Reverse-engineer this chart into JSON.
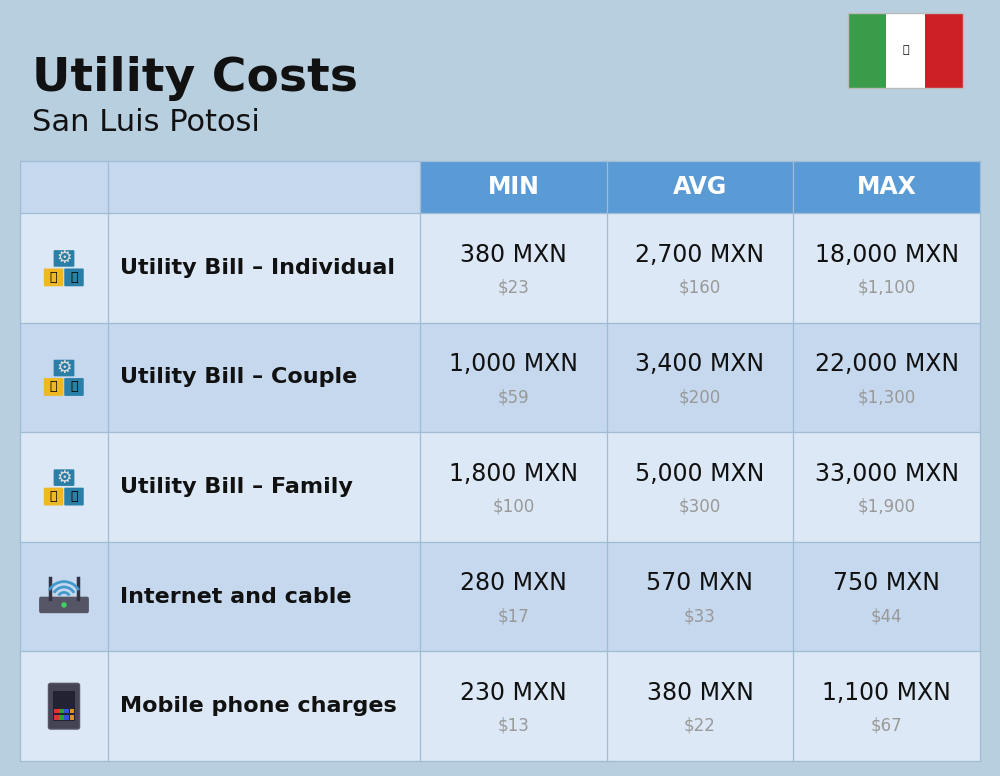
{
  "title": "Utility Costs",
  "subtitle": "San Luis Potosi",
  "background_color": "#b8cfe0",
  "header_bg_color": "#5b9bd5",
  "header_text_color": "#ffffff",
  "row_bg_light": "#dce8f5",
  "row_bg_dark": "#c5d8ed",
  "grid_color": "#a0bcd4",
  "usd_text_color": "#999999",
  "label_text_color": "#111111",
  "columns": [
    "MIN",
    "AVG",
    "MAX"
  ],
  "rows": [
    {
      "label": "Utility Bill – Individual",
      "values_mxn": [
        "380 MXN",
        "2,700 MXN",
        "18,000 MXN"
      ],
      "values_usd": [
        "$23",
        "$160",
        "$1,100"
      ]
    },
    {
      "label": "Utility Bill – Couple",
      "values_mxn": [
        "1,000 MXN",
        "3,400 MXN",
        "22,000 MXN"
      ],
      "values_usd": [
        "$59",
        "$200",
        "$1,300"
      ]
    },
    {
      "label": "Utility Bill – Family",
      "values_mxn": [
        "1,800 MXN",
        "5,000 MXN",
        "33,000 MXN"
      ],
      "values_usd": [
        "$100",
        "$300",
        "$1,900"
      ]
    },
    {
      "label": "Internet and cable",
      "values_mxn": [
        "280 MXN",
        "570 MXN",
        "750 MXN"
      ],
      "values_usd": [
        "$17",
        "$33",
        "$44"
      ]
    },
    {
      "label": "Mobile phone charges",
      "values_mxn": [
        "230 MXN",
        "380 MXN",
        "1,100 MXN"
      ],
      "values_usd": [
        "$13",
        "$22",
        "$67"
      ]
    }
  ],
  "flag_green": "#3a9c4a",
  "flag_white": "#ffffff",
  "flag_red": "#cc2027",
  "title_fontsize": 34,
  "subtitle_fontsize": 22,
  "header_fontsize": 17,
  "label_fontsize": 16,
  "value_mxn_fontsize": 17,
  "value_usd_fontsize": 12,
  "icon_fontsize": 28
}
